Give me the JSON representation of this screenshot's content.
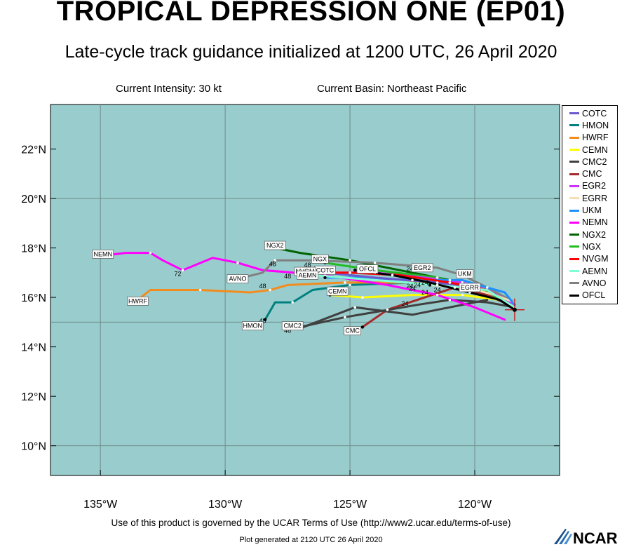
{
  "title": "TROPICAL DEPRESSION ONE (EP01)",
  "subtitle": "Late-cycle track guidance initialized at 1200 UTC, 26 April 2020",
  "current_intensity": "Current Intensity: 30 kt",
  "current_basin": "Current Basin: Northeast Pacific",
  "footer_terms": "Use of this product is governed by the UCAR Terms of Use (http://www2.ucar.edu/terms-of-use)",
  "footer_generated": "Plot generated at 2120 UTC  26 April 2020",
  "logo_text": "NCAR",
  "map": {
    "background_color": "#99cccc",
    "lat_labels": [
      "22°N",
      "20°N",
      "18°N",
      "16°N",
      "14°N",
      "12°N",
      "10°N"
    ],
    "lon_labels": [
      "135°W",
      "130°W",
      "125°W",
      "120°W"
    ],
    "lat_range": [
      8.8,
      23.8
    ],
    "lon_range": [
      -137,
      -116.6
    ],
    "grid": "on, every 5° longitude and 10° latitude",
    "storm_center": [
      -118.4,
      15.5
    ]
  },
  "legend": [
    {
      "name": "COTC",
      "color": "#6a5acd"
    },
    {
      "name": "HMON",
      "color": "#008080"
    },
    {
      "name": "HWRF",
      "color": "#f28c1e"
    },
    {
      "name": "CEMN",
      "color": "#ffff00"
    },
    {
      "name": "CMC2",
      "color": "#404040"
    },
    {
      "name": "CMC",
      "color": "#a52a2a"
    },
    {
      "name": "EGR2",
      "color": "#cc33ff"
    },
    {
      "name": "EGRR",
      "color": "#f5deb3"
    },
    {
      "name": "UKM",
      "color": "#1e90ff"
    },
    {
      "name": "NEMN",
      "color": "#ff00ff"
    },
    {
      "name": "NGX2",
      "color": "#006400"
    },
    {
      "name": "NGX",
      "color": "#22bb22"
    },
    {
      "name": "NVGM",
      "color": "#ff0000"
    },
    {
      "name": "AEMN",
      "color": "#7fffd4"
    },
    {
      "name": "AVNO",
      "color": "#808080"
    },
    {
      "name": "OFCL",
      "color": "#000000"
    }
  ],
  "tracks": [
    {
      "name": "CEMN",
      "color": "#ffff00",
      "label": "CEMN",
      "label_at": [
        -125.5,
        16.25
      ],
      "points": [
        [
          -118.4,
          15.6
        ],
        [
          -119.0,
          15.9
        ],
        [
          -120.5,
          16.1
        ],
        [
          -122.5,
          16.1
        ],
        [
          -124.5,
          16.0
        ],
        [
          -125.8,
          16.1
        ]
      ]
    },
    {
      "name": "CMC",
      "color": "#a52a2a",
      "label": "CMC",
      "label_at": [
        -124.9,
        14.65
      ],
      "points": [
        [
          -118.4,
          15.6
        ],
        [
          -119.5,
          16.1
        ],
        [
          -120.8,
          16.4
        ],
        [
          -122.0,
          16.0
        ],
        [
          -123.5,
          15.5
        ],
        [
          -124.5,
          14.8
        ]
      ]
    },
    {
      "name": "CMC2",
      "color": "#404040",
      "label": "CMC2",
      "label_at": [
        -127.3,
        14.85
      ],
      "points": [
        [
          -118.4,
          15.6
        ],
        [
          -119.5,
          15.8
        ],
        [
          -121.0,
          15.9
        ],
        [
          -122.3,
          15.7
        ],
        [
          -125.2,
          15.2
        ],
        [
          -127.0,
          14.8
        ]
      ]
    },
    {
      "name": "CMC2b",
      "color": "#404040",
      "label": "",
      "label_at": null,
      "points": [
        [
          -119.5,
          15.9
        ],
        [
          -122.5,
          15.3
        ],
        [
          -124.8,
          15.6
        ],
        [
          -127.0,
          14.75
        ]
      ]
    },
    {
      "name": "HMON",
      "color": "#008080",
      "label": "HMON",
      "label_at": [
        -128.9,
        14.85
      ],
      "points": [
        [
          -118.4,
          15.7
        ],
        [
          -119.0,
          16.1
        ],
        [
          -120.5,
          16.4
        ],
        [
          -122.5,
          16.6
        ],
        [
          -125.0,
          16.5
        ],
        [
          -126.5,
          16.3
        ],
        [
          -127.3,
          15.8
        ],
        [
          -128.0,
          15.8
        ],
        [
          -128.4,
          15.1
        ]
      ]
    },
    {
      "name": "HWRF",
      "color": "#f28c1e",
      "label": "HWRF",
      "label_at": [
        -133.5,
        15.85
      ],
      "points": [
        [
          -118.4,
          15.7
        ],
        [
          -119.2,
          16.2
        ],
        [
          -121.0,
          16.6
        ],
        [
          -123.0,
          16.6
        ],
        [
          -125.2,
          16.6
        ],
        [
          -127.5,
          16.5
        ],
        [
          -128.2,
          16.3
        ],
        [
          -129.0,
          16.2
        ],
        [
          -131.0,
          16.3
        ],
        [
          -133.0,
          16.3
        ],
        [
          -133.5,
          15.9
        ]
      ]
    },
    {
      "name": "NEMN",
      "color": "#ff00ff",
      "label": "NEMN",
      "label_at": [
        -134.9,
        17.75
      ],
      "points": [
        [
          -118.8,
          15.1
        ],
        [
          -120.0,
          15.6
        ],
        [
          -121.5,
          16.1
        ],
        [
          -123.5,
          16.5
        ],
        [
          -126.0,
          16.9
        ],
        [
          -128.5,
          17.1
        ],
        [
          -129.5,
          17.4
        ],
        [
          -130.5,
          17.6
        ],
        [
          -131.7,
          17.1
        ],
        [
          -132.5,
          17.5
        ],
        [
          -133.0,
          17.8
        ],
        [
          -134.0,
          17.8
        ],
        [
          -134.8,
          17.7
        ]
      ]
    },
    {
      "name": "NGX2",
      "color": "#006400",
      "label": "NGX2",
      "label_at": [
        -128.0,
        18.1
      ],
      "points": [
        [
          -118.4,
          15.7
        ],
        [
          -119.5,
          16.2
        ],
        [
          -121.0,
          16.7
        ],
        [
          -123.0,
          17.1
        ],
        [
          -125.0,
          17.5
        ],
        [
          -127.0,
          17.8
        ],
        [
          -128.0,
          18.0
        ]
      ]
    },
    {
      "name": "NGX",
      "color": "#22bb22",
      "label": "NGX",
      "label_at": [
        -126.2,
        17.55
      ],
      "points": [
        [
          -118.4,
          15.7
        ],
        [
          -119.5,
          16.2
        ],
        [
          -121.5,
          16.8
        ],
        [
          -124.0,
          17.1
        ],
        [
          -126.0,
          17.4
        ]
      ]
    },
    {
      "name": "AVNO",
      "color": "#808080",
      "label": "AVNO",
      "label_at": [
        -129.5,
        16.75
      ],
      "points": [
        [
          -118.4,
          15.8
        ],
        [
          -119.5,
          16.4
        ],
        [
          -120.5,
          16.9
        ],
        [
          -121.5,
          17.2
        ],
        [
          -124.0,
          17.4
        ],
        [
          -126.5,
          17.5
        ],
        [
          -128.0,
          17.5
        ],
        [
          -128.5,
          17.0
        ],
        [
          -129.3,
          16.8
        ]
      ]
    },
    {
      "name": "EGR2",
      "color": "#cc33ff",
      "label": "EGR2",
      "label_at": [
        -122.1,
        17.2
      ],
      "points": [
        [
          -118.4,
          15.7
        ],
        [
          -119.5,
          16.3
        ],
        [
          -120.5,
          16.6
        ],
        [
          -122.0,
          16.8
        ],
        [
          -124.0,
          17.0
        ],
        [
          -126.0,
          17.0
        ]
      ]
    },
    {
      "name": "EGRR",
      "color": "#f5deb3",
      "label": "EGRR",
      "label_at": [
        -120.2,
        16.4
      ],
      "points": [
        [
          -118.4,
          15.8
        ],
        [
          -119.2,
          16.1
        ],
        [
          -120.3,
          16.4
        ],
        [
          -121.8,
          16.5
        ]
      ]
    },
    {
      "name": "UKM",
      "color": "#1e90ff",
      "label": "UKM",
      "label_at": [
        -120.4,
        16.95
      ],
      "points": [
        [
          -118.4,
          15.7
        ],
        [
          -118.8,
          16.2
        ],
        [
          -119.5,
          16.4
        ],
        [
          -120.5,
          16.7
        ],
        [
          -122.5,
          16.7
        ],
        [
          -124.5,
          16.8
        ],
        [
          -126.0,
          16.8
        ]
      ]
    },
    {
      "name": "COTC",
      "color": "#6a5acd",
      "label": "COTC",
      "label_at": [
        -126.0,
        17.1
      ],
      "points": [
        [
          -118.4,
          15.6
        ],
        [
          -119.5,
          16.3
        ],
        [
          -121.5,
          16.6
        ],
        [
          -124.0,
          16.8
        ],
        [
          -126.0,
          17.0
        ]
      ]
    },
    {
      "name": "NVGM",
      "color": "#ff0000",
      "label": "NVGM",
      "label_at": [
        -126.8,
        17.05
      ],
      "points": [
        [
          -118.4,
          15.6
        ],
        [
          -119.5,
          16.3
        ],
        [
          -121.0,
          16.6
        ],
        [
          -123.0,
          16.9
        ],
        [
          -125.0,
          17.0
        ],
        [
          -126.8,
          17.0
        ]
      ]
    },
    {
      "name": "AEMN",
      "color": "#7fffd4",
      "label": "AEMN",
      "label_at": [
        -126.7,
        16.9
      ],
      "points": [
        [
          -118.4,
          15.6
        ],
        [
          -119.5,
          16.3
        ],
        [
          -121.5,
          16.5
        ],
        [
          -124.0,
          16.7
        ],
        [
          -126.5,
          16.9
        ]
      ]
    },
    {
      "name": "OFCL",
      "color": "#000000",
      "label": "OFCL",
      "label_at": [
        -124.3,
        17.15
      ],
      "points": [
        [
          -118.4,
          15.5
        ],
        [
          -119.0,
          15.9
        ],
        [
          -120.2,
          16.2
        ],
        [
          -121.8,
          16.6
        ],
        [
          -123.3,
          16.9
        ],
        [
          -124.8,
          17.1
        ]
      ]
    }
  ],
  "hour_labels": [
    {
      "text": "72",
      "at": [
        -131.9,
        16.95
      ]
    },
    {
      "text": "48",
      "at": [
        -128.1,
        17.35
      ]
    },
    {
      "text": "48",
      "at": [
        -128.5,
        16.45
      ]
    },
    {
      "text": "48",
      "at": [
        -127.5,
        16.85
      ]
    },
    {
      "text": "48",
      "at": [
        -126.5,
        16.85
      ]
    },
    {
      "text": "48",
      "at": [
        -126.7,
        17.3
      ]
    },
    {
      "text": "48",
      "at": [
        -128.5,
        15.05
      ]
    },
    {
      "text": "48",
      "at": [
        -127.5,
        14.65
      ]
    },
    {
      "text": "24",
      "at": [
        -122.6,
        17.15
      ]
    },
    {
      "text": "24",
      "at": [
        -122.6,
        16.45
      ]
    },
    {
      "text": "24",
      "at": [
        -122.3,
        16.5
      ]
    },
    {
      "text": "24",
      "at": [
        -122.0,
        16.6
      ]
    },
    {
      "text": "24",
      "at": [
        -122.0,
        16.2
      ]
    },
    {
      "text": "24",
      "at": [
        -122.5,
        16.35
      ]
    },
    {
      "text": "24",
      "at": [
        -121.5,
        16.3
      ]
    },
    {
      "text": "24",
      "at": [
        -122.8,
        15.75
      ]
    }
  ]
}
